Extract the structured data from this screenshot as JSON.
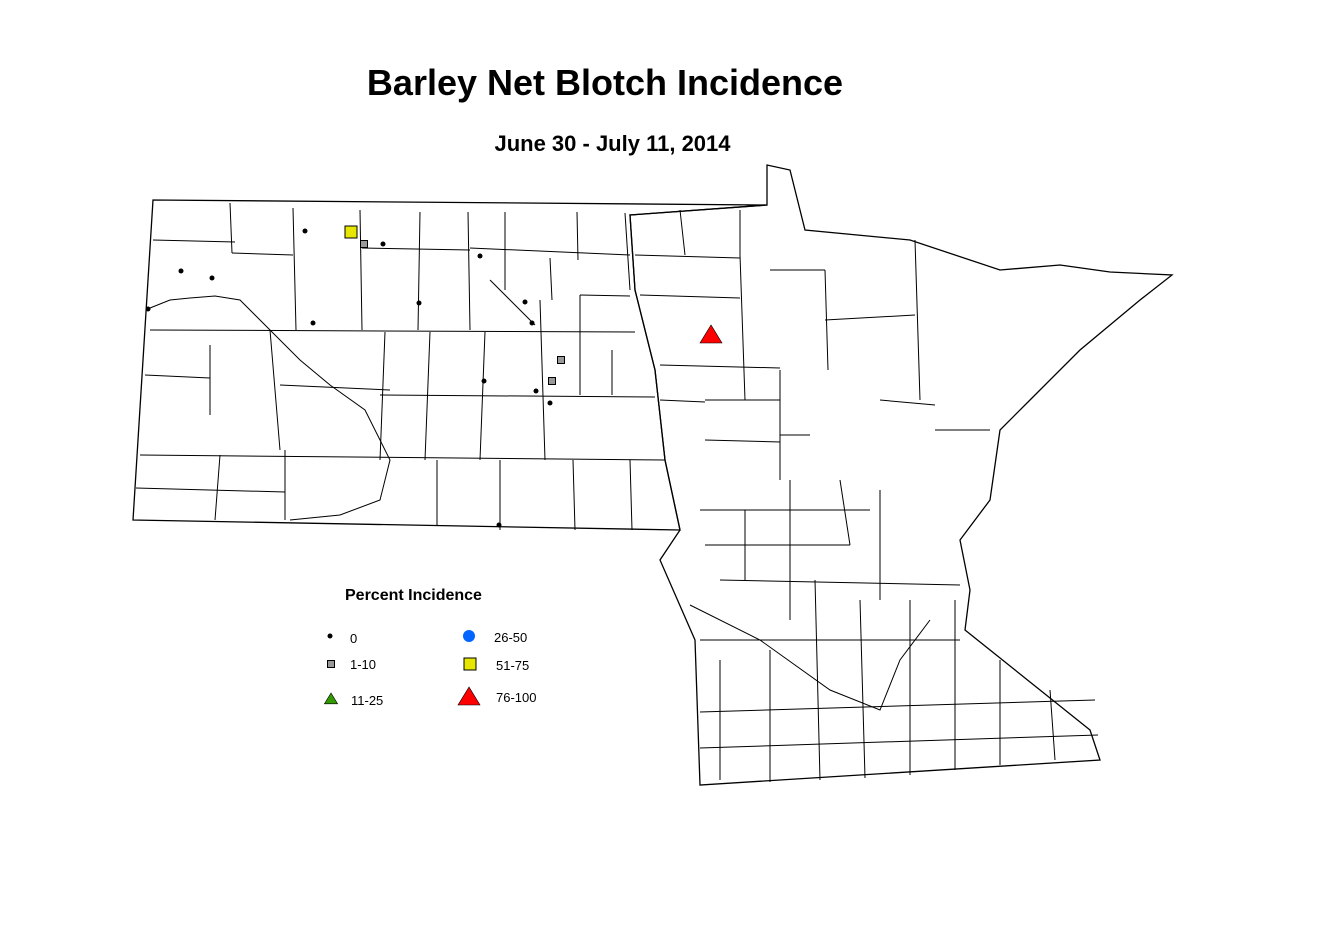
{
  "title": "Barley Net Blotch Incidence",
  "subtitle": "June 30 - July 11, 2014",
  "legend": {
    "title": "Percent Incidence",
    "categories": [
      {
        "label": "0",
        "symbol": "dot",
        "color": "#000000"
      },
      {
        "label": "1-10",
        "symbol": "square",
        "color": "#999999"
      },
      {
        "label": "11-25",
        "symbol": "triangle",
        "color": "#339900"
      },
      {
        "label": "26-50",
        "symbol": "circle",
        "color": "#0066ff"
      },
      {
        "label": "51-75",
        "symbol": "square",
        "color": "#e6e600"
      },
      {
        "label": "76-100",
        "symbol": "triangle",
        "color": "#ff0000"
      }
    ]
  },
  "regions": [
    "North Dakota",
    "Minnesota"
  ]
}
